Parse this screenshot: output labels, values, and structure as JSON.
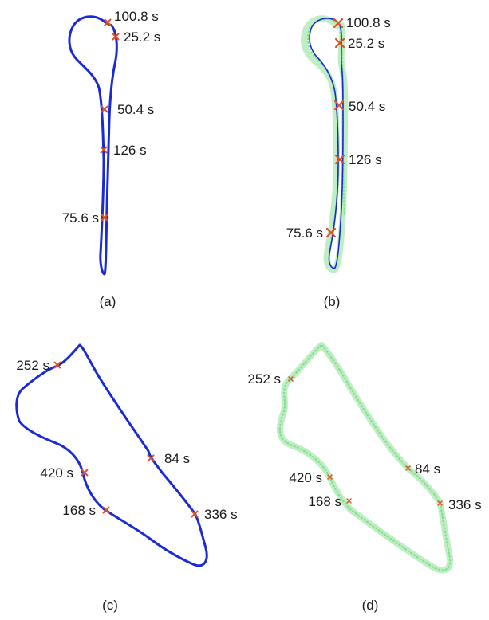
{
  "colors": {
    "trajectory_blue": "#1a2bd6",
    "estimate_green": "#7ee08a",
    "estimate_green_light": "#bfeec4",
    "marker_red": "#e0502a",
    "text": "#1a1a1a"
  },
  "panels": [
    {
      "id": "a",
      "caption": "(a)",
      "style": "blue",
      "markers": [
        {
          "label": "100.8 s"
        },
        {
          "label": "25.2 s"
        },
        {
          "label": "50.4 s"
        },
        {
          "label": "126 s"
        },
        {
          "label": "75.6 s"
        }
      ]
    },
    {
      "id": "b",
      "caption": "(b)",
      "style": "green-blue",
      "markers": [
        {
          "label": "100.8 s"
        },
        {
          "label": "25.2 s"
        },
        {
          "label": "50.4 s"
        },
        {
          "label": "126 s"
        },
        {
          "label": "75.6 s"
        }
      ]
    },
    {
      "id": "c",
      "caption": "(c)",
      "style": "blue",
      "markers": [
        {
          "label": "252 s"
        },
        {
          "label": "84 s"
        },
        {
          "label": "420 s"
        },
        {
          "label": "168 s"
        },
        {
          "label": "336 s"
        }
      ]
    },
    {
      "id": "d",
      "caption": "(d)",
      "style": "green",
      "markers": [
        {
          "label": "252 s"
        },
        {
          "label": "84 s"
        },
        {
          "label": "420 s"
        },
        {
          "label": "168 s"
        },
        {
          "label": "336 s"
        }
      ]
    }
  ]
}
